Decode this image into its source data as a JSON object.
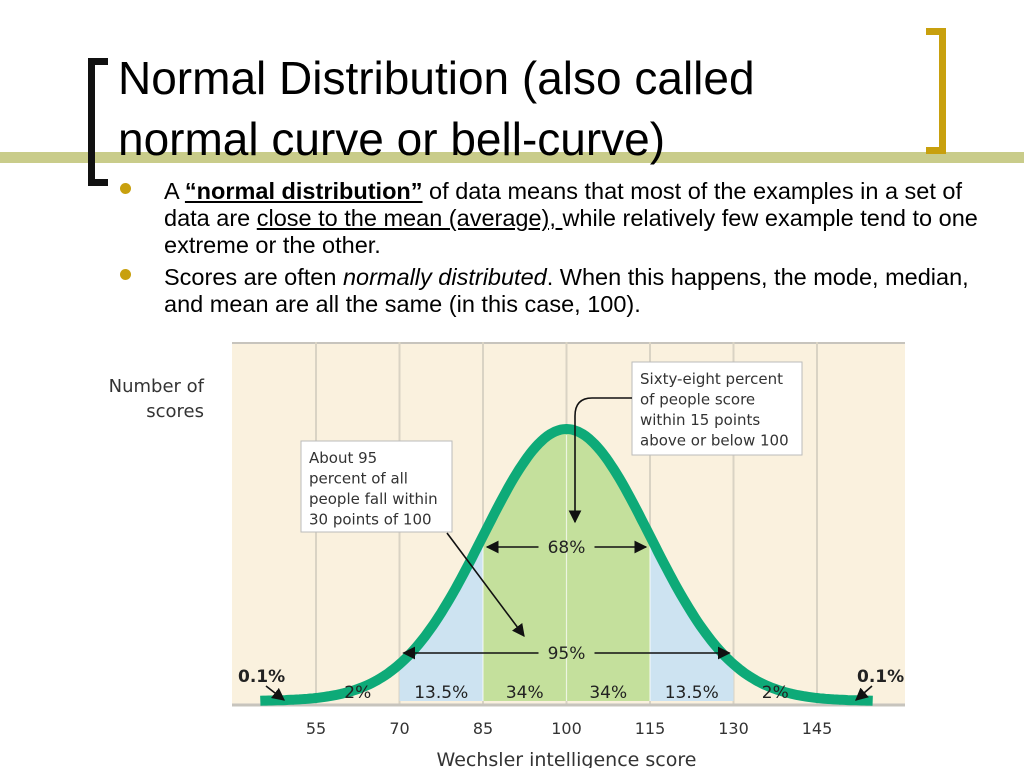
{
  "slide": {
    "title_lines": [
      "Normal Distribution (also called",
      "normal curve or bell-curve)"
    ],
    "bullets": [
      {
        "p1": "A ",
        "p2": "“normal distribution”",
        "p3": " of data means that most of the examples in a set of data are ",
        "p4": "close to the mean (average), ",
        "p5": "while relatively few example tend to one extreme or the other."
      },
      {
        "p1": "Scores are often ",
        "p2": "normally distributed",
        "p3": ".  When this happens, the mode, median, and mean are all the same (in this case, 100)."
      }
    ]
  },
  "colors": {
    "accent_gold": "#c8a00e",
    "rule_olive": "#c9cc8a",
    "chart_bg": "#faf1de",
    "curve_green": "#0eaa78",
    "center_fill": "#c4e09c",
    "side_fill": "#cde3f1"
  },
  "chart_data": {
    "type": "area",
    "title": "",
    "xlabel": "Wechsler intelligence score",
    "ylabel": "Number of scores",
    "distribution": {
      "mean": 100,
      "sd": 15
    },
    "xlim": [
      45,
      155
    ],
    "x_ticks": [
      55,
      70,
      85,
      100,
      115,
      130,
      145
    ],
    "bands": [
      {
        "from": 55,
        "to": 70,
        "label": "2%",
        "fill": "none"
      },
      {
        "from": 70,
        "to": 85,
        "label": "13.5%",
        "fill": "#cde3f1"
      },
      {
        "from": 85,
        "to": 100,
        "label": "34%",
        "fill": "#c4e09c"
      },
      {
        "from": 100,
        "to": 115,
        "label": "34%",
        "fill": "#c4e09c"
      },
      {
        "from": 115,
        "to": 130,
        "label": "13.5%",
        "fill": "#cde3f1"
      },
      {
        "from": 130,
        "to": 145,
        "label": "2%",
        "fill": "none"
      }
    ],
    "tail_labels": {
      "left": "0.1%",
      "right": "0.1%"
    },
    "spans": [
      {
        "from": 85,
        "to": 115,
        "label": "68%"
      },
      {
        "from": 70,
        "to": 130,
        "label": "95%"
      }
    ],
    "annotations": [
      {
        "lines": [
          "Sixty-eight percent",
          "of people score",
          "within 15 points",
          "above or below 100"
        ]
      },
      {
        "lines": [
          "About 95",
          "percent of all",
          "people fall within",
          "30 points of 100"
        ]
      }
    ],
    "grid": true,
    "legend": "none"
  }
}
